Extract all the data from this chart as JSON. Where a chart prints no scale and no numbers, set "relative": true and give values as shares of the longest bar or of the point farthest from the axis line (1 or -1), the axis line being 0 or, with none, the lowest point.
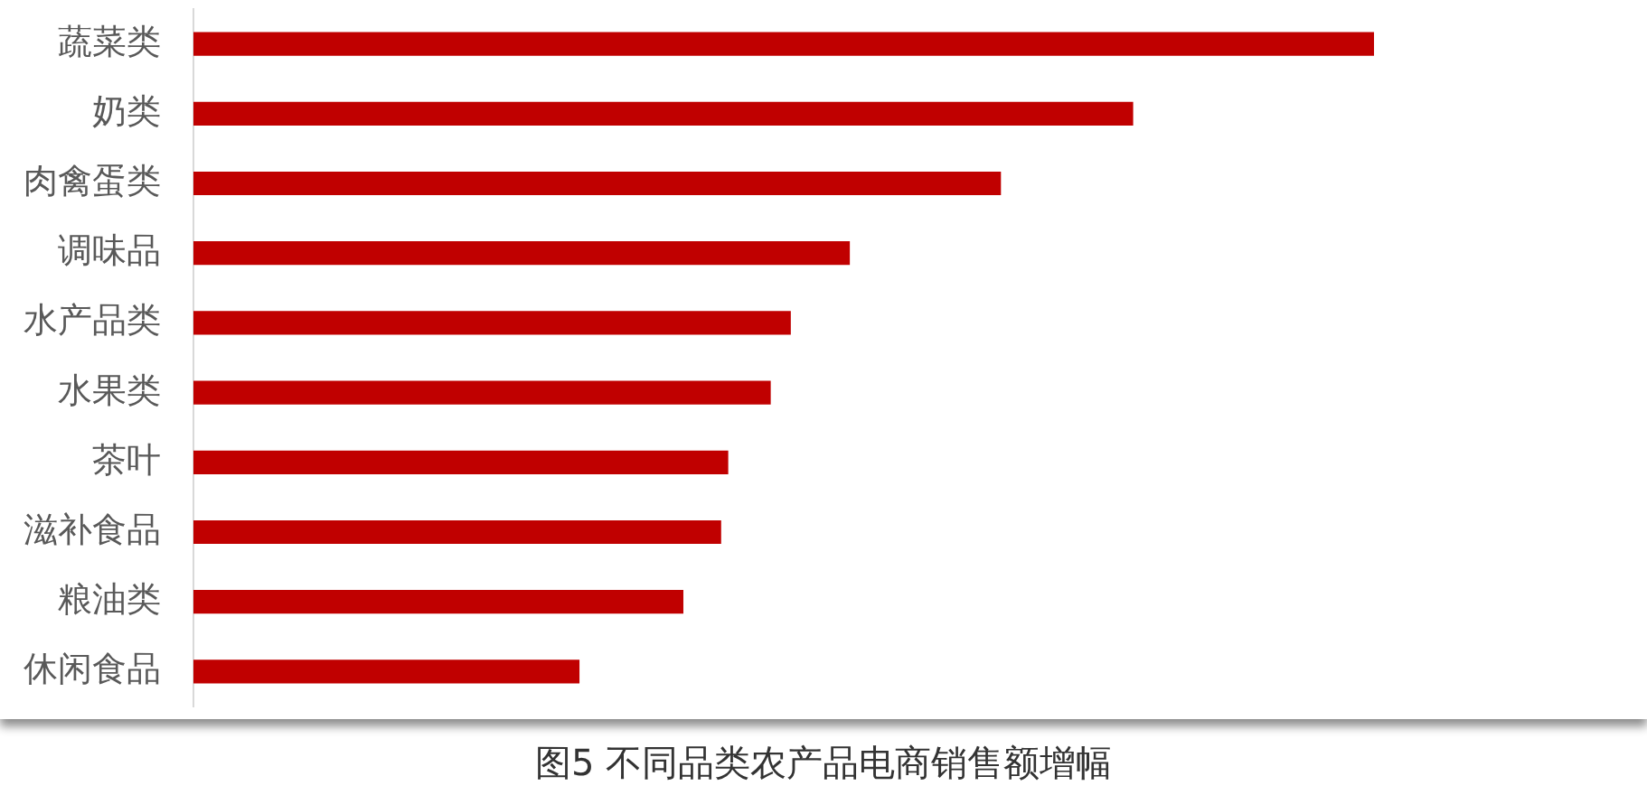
{
  "chart_data": {
    "type": "bar",
    "orientation": "horizontal",
    "relative": true,
    "title": "图5 不同品类农产品电商销售额增幅",
    "categories": [
      "蔬菜类",
      "奶类",
      "肉禽蛋类",
      "调味品",
      "水产品类",
      "水果类",
      "茶叶",
      "滋补食品",
      "粮油类",
      "休闲食品"
    ],
    "values": [
      1,
      0.796,
      0.684,
      0.556,
      0.506,
      0.489,
      0.453,
      0.447,
      0.415,
      0.327
    ],
    "color": "#c00000"
  }
}
